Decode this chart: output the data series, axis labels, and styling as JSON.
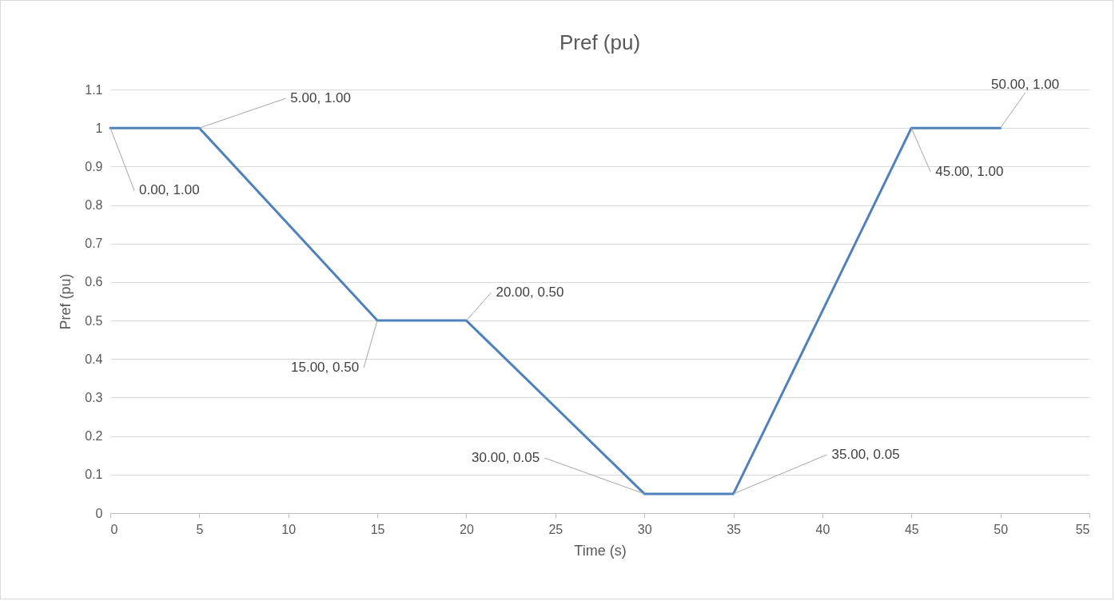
{
  "chart_data": {
    "type": "line",
    "title": "Pref (pu)",
    "xlabel": "Time (s)",
    "ylabel": "Pref (pu)",
    "x": [
      0,
      5,
      15,
      20,
      30,
      35,
      45,
      50
    ],
    "series": [
      {
        "color": "#4f81bd",
        "values": [
          1,
          1,
          0.5,
          0.5,
          0.05,
          0.05,
          1,
          1
        ]
      }
    ],
    "xlim": [
      0,
      55
    ],
    "xticks": [
      0,
      5,
      10,
      15,
      20,
      25,
      30,
      35,
      40,
      45,
      50,
      55
    ],
    "ylim": [
      0,
      1.1
    ],
    "yticks": [
      0,
      0.1,
      0.2,
      0.3,
      0.4,
      0.5,
      0.6,
      0.7,
      0.8,
      0.9,
      1,
      1.1
    ],
    "grid": "y",
    "marker": "none",
    "line_style": "solid",
    "annotations": [
      {
        "text": "0.00, 1.00",
        "x": 0,
        "y": 1
      },
      {
        "text": "5.00, 1.00",
        "x": 5,
        "y": 1
      },
      {
        "text": "15.00, 0.50",
        "x": 15,
        "y": 0.5
      },
      {
        "text": "20.00, 0.50",
        "x": 20,
        "y": 0.5
      },
      {
        "text": "30.00, 0.05",
        "x": 30,
        "y": 0.05
      },
      {
        "text": "35.00, 0.05",
        "x": 35,
        "y": 0.05
      },
      {
        "text": "45.00, 1.00",
        "x": 45,
        "y": 1
      },
      {
        "text": "50.00, 1.00",
        "x": 50,
        "y": 1
      }
    ]
  }
}
